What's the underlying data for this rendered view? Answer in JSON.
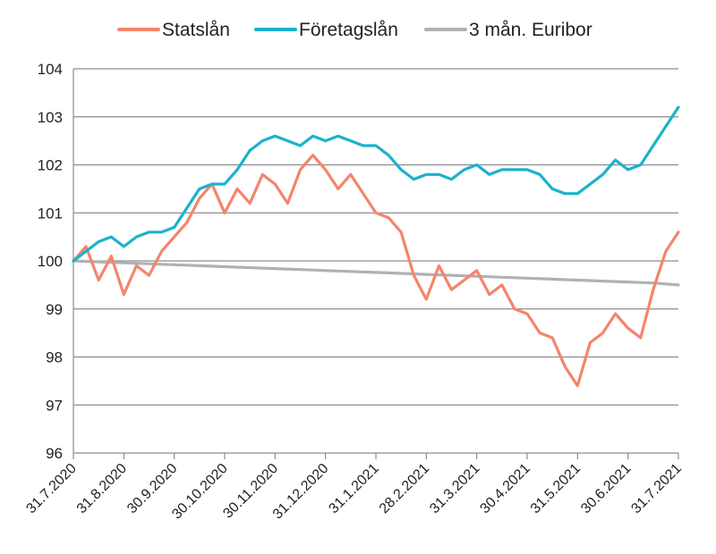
{
  "chart_data": {
    "type": "line",
    "title": "",
    "xlabel": "",
    "ylabel": "",
    "ylim": [
      96,
      104
    ],
    "y_ticks": [
      "96",
      "97",
      "98",
      "99",
      "100",
      "101",
      "102",
      "103",
      "104"
    ],
    "grid": "horizontal",
    "legend_position": "top",
    "x_tick_labels": [
      "31.7.2020",
      "31.8.2020",
      "30.9.2020",
      "30.10.2020",
      "30.11.2020",
      "31.12.2020",
      "31.1.2021",
      "28.2.2021",
      "31.3.2021",
      "30.4.2021",
      "31.5.2021",
      "30.6.2021",
      "31.7.2021"
    ],
    "x": [
      "31.7.2020",
      "7.8.2020",
      "14.8.2020",
      "21.8.2020",
      "31.8.2020",
      "7.9.2020",
      "14.9.2020",
      "21.9.2020",
      "30.9.2020",
      "7.10.2020",
      "14.10.2020",
      "21.10.2020",
      "30.10.2020",
      "7.11.2020",
      "14.11.2020",
      "21.11.2020",
      "30.11.2020",
      "7.12.2020",
      "14.12.2020",
      "21.12.2020",
      "31.12.2020",
      "7.1.2021",
      "14.1.2021",
      "21.1.2021",
      "31.1.2021",
      "7.2.2021",
      "14.2.2021",
      "21.2.2021",
      "28.2.2021",
      "7.3.2021",
      "14.3.2021",
      "21.3.2021",
      "31.3.2021",
      "7.4.2021",
      "14.4.2021",
      "21.4.2021",
      "30.4.2021",
      "7.5.2021",
      "14.5.2021",
      "21.5.2021",
      "31.5.2021",
      "7.6.2021",
      "14.6.2021",
      "21.6.2021",
      "30.6.2021",
      "7.7.2021",
      "14.7.2021",
      "21.7.2021",
      "31.7.2021"
    ],
    "series": [
      {
        "name": "Statslån",
        "color": "#F4856C",
        "values": [
          100.0,
          100.3,
          99.6,
          100.1,
          99.3,
          99.9,
          99.7,
          100.2,
          100.5,
          100.8,
          101.3,
          101.6,
          101.0,
          101.5,
          101.2,
          101.8,
          101.6,
          101.2,
          101.9,
          102.2,
          101.9,
          101.5,
          101.8,
          101.4,
          101.0,
          100.9,
          100.6,
          99.7,
          99.2,
          99.9,
          99.4,
          99.6,
          99.8,
          99.3,
          99.5,
          99.0,
          98.9,
          98.5,
          98.4,
          97.8,
          97.4,
          98.3,
          98.5,
          98.9,
          98.6,
          98.4,
          99.4,
          100.2,
          100.6
        ]
      },
      {
        "name": "Företagslån",
        "color": "#1BB2CC",
        "values": [
          100.0,
          100.2,
          100.4,
          100.5,
          100.3,
          100.5,
          100.6,
          100.6,
          100.7,
          101.1,
          101.5,
          101.6,
          101.6,
          101.9,
          102.3,
          102.5,
          102.6,
          102.5,
          102.4,
          102.6,
          102.5,
          102.6,
          102.5,
          102.4,
          102.4,
          102.2,
          101.9,
          101.7,
          101.8,
          101.8,
          101.7,
          101.9,
          102.0,
          101.8,
          101.9,
          101.9,
          101.9,
          101.8,
          101.5,
          101.4,
          101.4,
          101.6,
          101.8,
          102.1,
          101.9,
          102.0,
          102.4,
          102.8,
          103.2
        ]
      },
      {
        "name": "3 mån. Euribor",
        "color": "#B1B1B1",
        "values": [
          100.0,
          99.99,
          99.98,
          99.97,
          99.96,
          99.95,
          99.94,
          99.93,
          99.92,
          99.91,
          99.9,
          99.89,
          99.88,
          99.87,
          99.86,
          99.85,
          99.84,
          99.83,
          99.82,
          99.81,
          99.8,
          99.79,
          99.78,
          99.77,
          99.76,
          99.75,
          99.74,
          99.73,
          99.72,
          99.71,
          99.7,
          99.69,
          99.68,
          99.67,
          99.66,
          99.65,
          99.64,
          99.63,
          99.62,
          99.61,
          99.6,
          99.59,
          99.58,
          99.57,
          99.56,
          99.55,
          99.54,
          99.52,
          99.5
        ]
      }
    ]
  }
}
